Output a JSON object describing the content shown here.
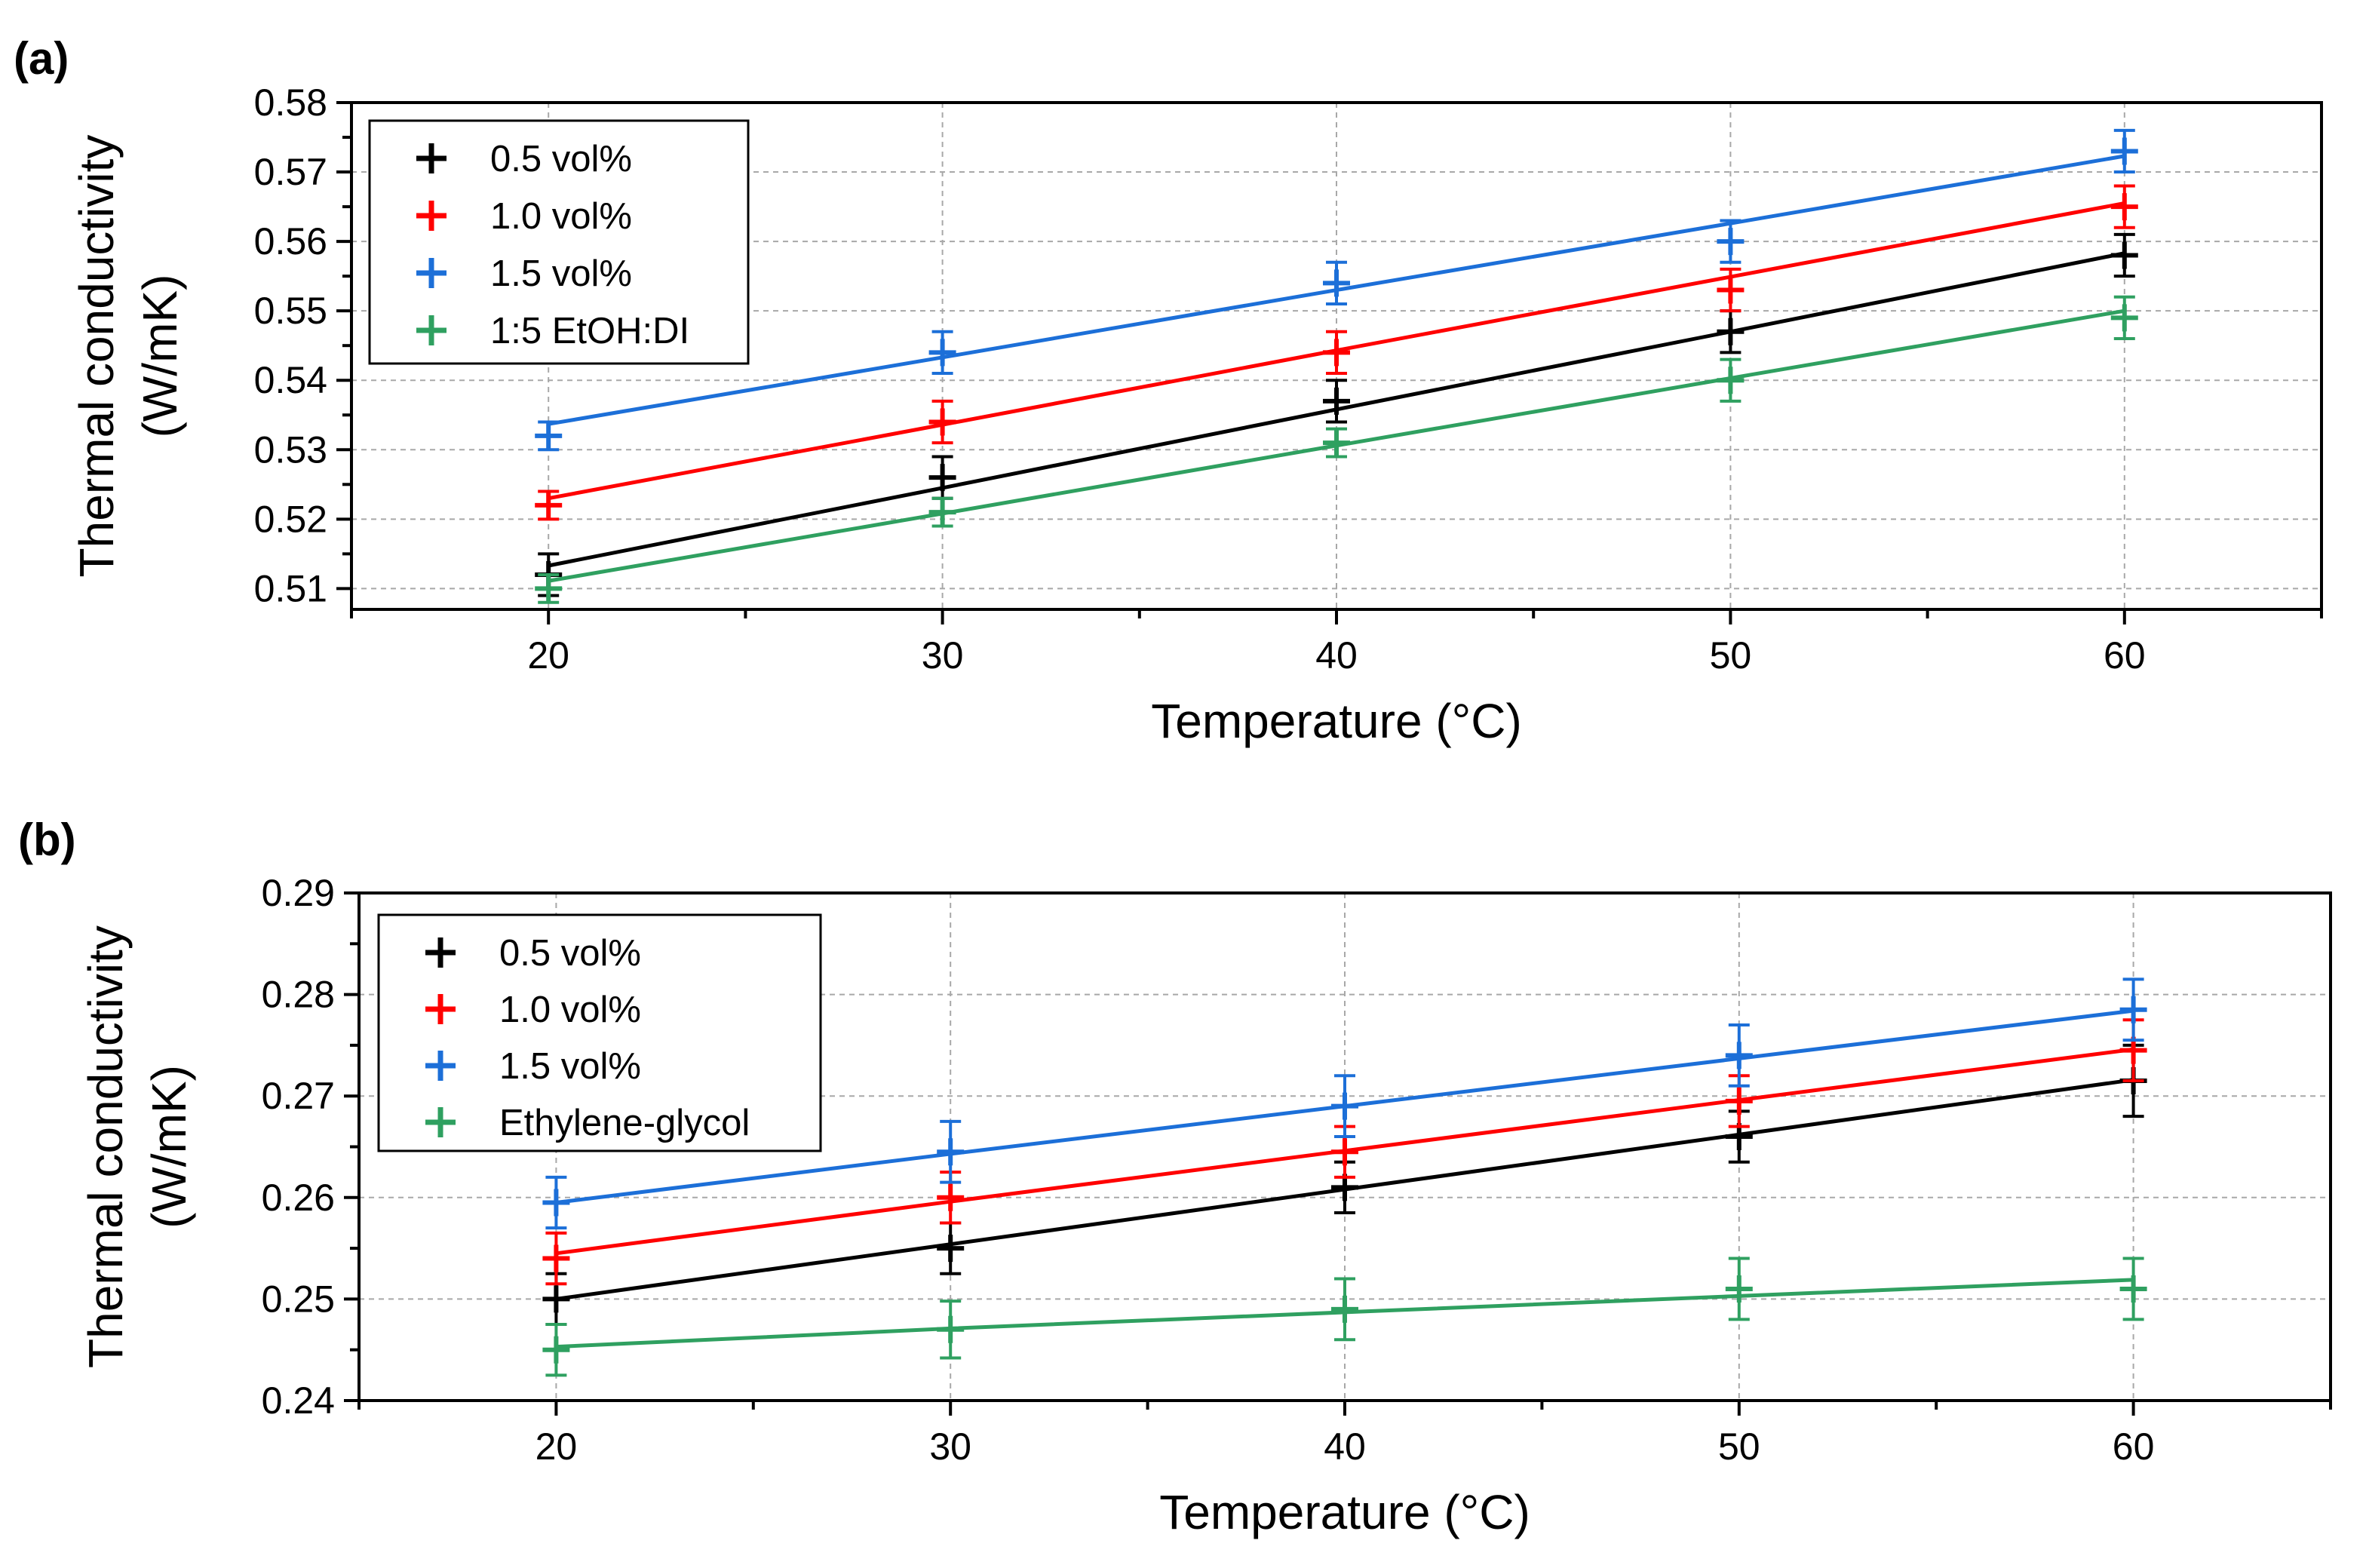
{
  "chart_data": [
    {
      "type": "scatter",
      "panel_label": "(a)",
      "xlabel": "Temperature (°C)",
      "ylabel": [
        "Thermal conductivity",
        "(W/mK)"
      ],
      "xlim": [
        15,
        65
      ],
      "ylim": [
        0.507,
        0.58
      ],
      "x_ticks": [
        20,
        30,
        40,
        50,
        60
      ],
      "x_tick_labels": [
        "20",
        "30",
        "40",
        "50",
        "60"
      ],
      "y_ticks": [
        0.51,
        0.52,
        0.53,
        0.54,
        0.55,
        0.56,
        0.57,
        0.58
      ],
      "y_tick_labels": [
        "0.51",
        "0.52",
        "0.53",
        "0.54",
        "0.55",
        "0.56",
        "0.57",
        "0.58"
      ],
      "grid": true,
      "legend_position": "top-left",
      "series": [
        {
          "name": "0.5 vol%",
          "color": "#000000",
          "x": [
            20,
            30,
            40,
            50,
            60
          ],
          "y": [
            0.512,
            0.526,
            0.537,
            0.547,
            0.558
          ],
          "err": [
            0.003,
            0.003,
            0.003,
            0.003,
            0.003
          ],
          "fit": [
            0.5133,
            0.5245,
            0.5358,
            0.547,
            0.5583
          ]
        },
        {
          "name": "1.0 vol%",
          "color": "#ff0000",
          "x": [
            20,
            30,
            40,
            50,
            60
          ],
          "y": [
            0.522,
            0.534,
            0.544,
            0.553,
            0.565
          ],
          "err": [
            0.002,
            0.003,
            0.003,
            0.003,
            0.003
          ],
          "fit": [
            0.523,
            0.5336,
            0.5443,
            0.5549,
            0.5655
          ]
        },
        {
          "name": "1.5 vol%",
          "color": "#1c6fd8",
          "x": [
            20,
            30,
            40,
            50,
            60
          ],
          "y": [
            0.532,
            0.544,
            0.554,
            0.56,
            0.573
          ],
          "err": [
            0.002,
            0.003,
            0.003,
            0.003,
            0.003
          ],
          "fit": [
            0.5337,
            0.5433,
            0.553,
            0.5626,
            0.5723
          ]
        },
        {
          "name": "1:5 EtOH:DI",
          "color": "#2fa060",
          "x": [
            20,
            30,
            40,
            50,
            60
          ],
          "y": [
            0.51,
            0.521,
            0.531,
            0.54,
            0.549
          ],
          "err": [
            0.002,
            0.002,
            0.002,
            0.003,
            0.003
          ],
          "fit": [
            0.5111,
            0.5208,
            0.5306,
            0.5403,
            0.55
          ]
        }
      ]
    },
    {
      "type": "scatter",
      "panel_label": "(b)",
      "xlabel": "Temperature (°C)",
      "ylabel": [
        "Thermal conductivity",
        "(W/mK)"
      ],
      "xlim": [
        15,
        65
      ],
      "ylim": [
        0.24,
        0.29
      ],
      "x_ticks": [
        20,
        30,
        40,
        50,
        60
      ],
      "x_tick_labels": [
        "20",
        "30",
        "40",
        "50",
        "60"
      ],
      "y_ticks": [
        0.24,
        0.25,
        0.26,
        0.27,
        0.28,
        0.29
      ],
      "y_tick_labels": [
        "0.24",
        "0.25",
        "0.26",
        "0.27",
        "0.28",
        "0.29"
      ],
      "grid": true,
      "legend_position": "top-left",
      "series": [
        {
          "name": "0.5 vol%",
          "color": "#000000",
          "x": [
            20,
            30,
            40,
            50,
            60
          ],
          "y": [
            0.25,
            0.255,
            0.261,
            0.266,
            0.2715
          ],
          "err": [
            0.0025,
            0.0025,
            0.0025,
            0.0025,
            0.0035
          ],
          "fit": [
            0.25,
            0.2554,
            0.2608,
            0.2662,
            0.2716
          ]
        },
        {
          "name": "1.0 vol%",
          "color": "#ff0000",
          "x": [
            20,
            30,
            40,
            50,
            60
          ],
          "y": [
            0.254,
            0.26,
            0.2645,
            0.2695,
            0.2745
          ],
          "err": [
            0.0025,
            0.0025,
            0.0025,
            0.0025,
            0.003
          ],
          "fit": [
            0.2545,
            0.2596,
            0.2646,
            0.2696,
            0.2746
          ]
        },
        {
          "name": "1.5 vol%",
          "color": "#1c6fd8",
          "x": [
            20,
            30,
            40,
            50,
            60
          ],
          "y": [
            0.2595,
            0.2645,
            0.269,
            0.274,
            0.2785
          ],
          "err": [
            0.0025,
            0.003,
            0.003,
            0.003,
            0.003
          ],
          "fit": [
            0.2595,
            0.2643,
            0.269,
            0.2737,
            0.2784
          ]
        },
        {
          "name": "Ethylene-glycol",
          "color": "#2fa060",
          "x": [
            20,
            30,
            40,
            50,
            60
          ],
          "y": [
            0.245,
            0.247,
            0.249,
            0.251,
            0.251
          ],
          "err": [
            0.0025,
            0.0028,
            0.003,
            0.003,
            0.003
          ],
          "fit": [
            0.2453,
            0.2471,
            0.2487,
            0.2503,
            0.2519
          ]
        }
      ]
    }
  ]
}
